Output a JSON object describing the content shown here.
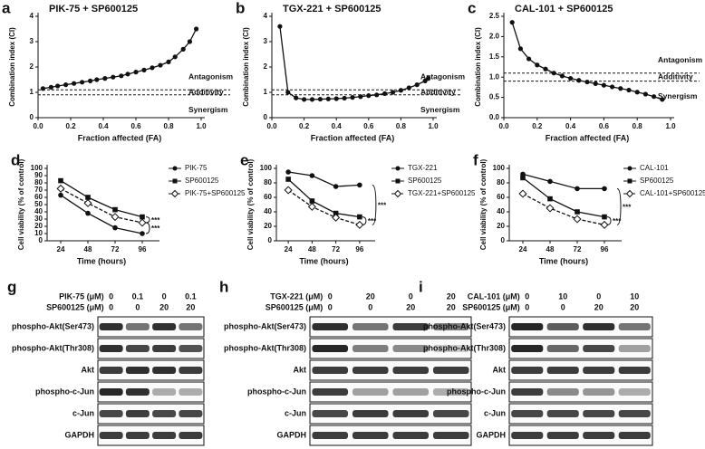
{
  "chart_data": [
    {
      "type": "line",
      "label": "a",
      "title": "PIK-75 + SP600125",
      "x_label": "Fraction affected (FA)",
      "y_label": "Combination index (CI)",
      "x": [
        0.03,
        0.08,
        0.12,
        0.17,
        0.22,
        0.27,
        0.32,
        0.36,
        0.41,
        0.46,
        0.51,
        0.55,
        0.6,
        0.65,
        0.7,
        0.75,
        0.8,
        0.84,
        0.89,
        0.93,
        0.97
      ],
      "values": [
        1.15,
        1.2,
        1.25,
        1.3,
        1.35,
        1.4,
        1.45,
        1.5,
        1.55,
        1.6,
        1.65,
        1.72,
        1.8,
        1.88,
        1.97,
        2.07,
        2.2,
        2.4,
        2.7,
        3.0,
        3.5
      ],
      "color": "#111111",
      "hlines": [
        0.9,
        1.1
      ],
      "annotations": [
        "Antagonism",
        "Additivity",
        "Synergism"
      ],
      "xlim": [
        0,
        1
      ],
      "xticks": [
        {
          "value": 0,
          "label": "0.0"
        },
        0.2,
        0.4,
        0.6,
        0.8,
        {
          "value": 1,
          "label": "1.0"
        }
      ],
      "ylim": [
        0,
        4
      ],
      "yticks": [
        0,
        1,
        2,
        3,
        4
      ]
    },
    {
      "type": "line",
      "label": "b",
      "title": "TGX-221 + SP600125",
      "x_label": "Fraction affected (FA)",
      "y_label": "Combination index (CI)",
      "x": [
        0.05,
        0.1,
        0.15,
        0.2,
        0.25,
        0.3,
        0.35,
        0.4,
        0.45,
        0.5,
        0.55,
        0.6,
        0.65,
        0.7,
        0.75,
        0.8,
        0.85,
        0.9,
        0.95,
        0.97
      ],
      "values": [
        3.6,
        1.0,
        0.78,
        0.72,
        0.72,
        0.73,
        0.74,
        0.75,
        0.77,
        0.8,
        0.83,
        0.87,
        0.9,
        0.95,
        1.0,
        1.08,
        1.18,
        1.3,
        1.45,
        1.55
      ],
      "color": "#111111",
      "hlines": [
        0.9,
        1.1
      ],
      "annotations": [
        "Antagonism",
        "Additivity",
        "Synergism"
      ],
      "xlim": [
        0,
        1
      ],
      "xticks": [
        {
          "value": 0,
          "label": "0.0"
        },
        0.2,
        0.4,
        0.6,
        0.8,
        {
          "value": 1,
          "label": "1.0"
        }
      ],
      "ylim": [
        0,
        4
      ],
      "yticks": [
        0,
        1,
        2,
        3,
        4
      ]
    },
    {
      "type": "line",
      "label": "c",
      "title": "CAL-101 + SP600125",
      "x_label": "Fraction affected (FA)",
      "y_label": "Combination index (CI)",
      "x": [
        0.05,
        0.1,
        0.15,
        0.2,
        0.25,
        0.3,
        0.35,
        0.4,
        0.45,
        0.5,
        0.55,
        0.6,
        0.65,
        0.7,
        0.75,
        0.8,
        0.85,
        0.9,
        0.95
      ],
      "values": [
        2.35,
        1.7,
        1.45,
        1.3,
        1.2,
        1.1,
        1.03,
        0.97,
        0.92,
        0.88,
        0.84,
        0.8,
        0.76,
        0.72,
        0.68,
        0.63,
        0.58,
        0.52,
        0.45
      ],
      "color": "#111111",
      "hlines": [
        0.9,
        1.1
      ],
      "annotations": [
        "Antagonism",
        "Additivity",
        "Synergism"
      ],
      "xlim": [
        0,
        1
      ],
      "xticks": [
        {
          "value": 0,
          "label": "0.0"
        },
        0.2,
        0.4,
        0.6,
        0.8,
        {
          "value": 1,
          "label": "1.0"
        }
      ],
      "ylim": [
        0,
        2.5
      ],
      "yticks": [
        {
          "value": 0,
          "label": "0.0"
        },
        0.5,
        {
          "value": 1,
          "label": "1.0"
        },
        1.5,
        {
          "value": 2,
          "label": "2.0"
        },
        2.5
      ]
    },
    {
      "type": "line",
      "label": "d",
      "x_label": "Time (hours)",
      "y_label": "Cell viability (% of control)",
      "x": [
        24,
        48,
        72,
        96
      ],
      "series": [
        {
          "name": "PIK-75",
          "color": "#111111",
          "marker": "circle",
          "line_style": "solid",
          "values": [
            63,
            38,
            18,
            10
          ]
        },
        {
          "name": "SP600125",
          "color": "#111111",
          "marker": "square",
          "line_style": "solid",
          "values": [
            83,
            60,
            43,
            33
          ]
        },
        {
          "name": "PIK-75+SP600125",
          "color": "#111111",
          "marker": "diamond",
          "line_style": "dashed",
          "values": [
            72,
            52,
            33,
            25
          ]
        }
      ],
      "annotations": [
        "***",
        "***"
      ],
      "xlim": [
        12,
        108
      ],
      "xticks": [
        24,
        48,
        72,
        96
      ],
      "ylim": [
        0,
        100
      ],
      "yticks": [
        0,
        10,
        20,
        30,
        40,
        50,
        60,
        70,
        80,
        90,
        100
      ]
    },
    {
      "type": "line",
      "label": "e",
      "x_label": "Time (hours)",
      "y_label": "Cell viability (% of control)",
      "x": [
        24,
        48,
        72,
        96
      ],
      "series": [
        {
          "name": "TGX-221",
          "color": "#111111",
          "marker": "circle",
          "line_style": "solid",
          "values": [
            95,
            90,
            75,
            77
          ]
        },
        {
          "name": "SP600125",
          "color": "#111111",
          "marker": "square",
          "line_style": "solid",
          "values": [
            85,
            55,
            38,
            33
          ]
        },
        {
          "name": "TGX-221+SP600125",
          "color": "#111111",
          "marker": "diamond",
          "line_style": "dashed",
          "values": [
            70,
            47,
            32,
            22
          ]
        }
      ],
      "annotations": [
        "***",
        "***"
      ],
      "xlim": [
        12,
        108
      ],
      "xticks": [
        24,
        48,
        72,
        96
      ],
      "ylim": [
        0,
        100
      ],
      "yticks": [
        0,
        20,
        40,
        60,
        80,
        100
      ]
    },
    {
      "type": "line",
      "label": "f",
      "x_label": "Time (hours)",
      "y_label": "Cell viability (% of control)",
      "x": [
        24,
        48,
        72,
        96
      ],
      "series": [
        {
          "name": "CAL-101",
          "color": "#111111",
          "marker": "circle",
          "line_style": "solid",
          "values": [
            92,
            82,
            72,
            72
          ]
        },
        {
          "name": "SP600125",
          "color": "#111111",
          "marker": "square",
          "line_style": "solid",
          "values": [
            87,
            58,
            40,
            33
          ]
        },
        {
          "name": "CAL-101+SP600125",
          "color": "#111111",
          "marker": "diamond",
          "line_style": "dashed",
          "values": [
            65,
            45,
            30,
            22
          ]
        }
      ],
      "annotations": [
        "***",
        "***"
      ],
      "xlim": [
        12,
        108
      ],
      "xticks": [
        24,
        48,
        72,
        96
      ],
      "ylim": [
        0,
        100
      ],
      "yticks": [
        0,
        20,
        40,
        60,
        80,
        100
      ]
    }
  ],
  "blots": [
    {
      "label": "g",
      "treatments": [
        {
          "name": "PIK-75 (μM)",
          "doses": [
            "0",
            "0.1",
            "0",
            "0.1"
          ]
        },
        {
          "name": "SP600125 (μM)",
          "doses": [
            "0",
            "0",
            "20",
            "20"
          ]
        }
      ],
      "rows": [
        "phospho-Akt(Ser473)",
        "phospho-Akt(Thr308)",
        "Akt",
        "phospho-c-Jun",
        "c-Jun",
        "GAPDH"
      ]
    },
    {
      "label": "h",
      "treatments": [
        {
          "name": "TGX-221 (μM)",
          "doses": [
            "0",
            "20",
            "0",
            "20"
          ]
        },
        {
          "name": "SP600125 (μM)",
          "doses": [
            "0",
            "0",
            "20",
            "20"
          ]
        }
      ],
      "rows": [
        "phospho-Akt(Ser473)",
        "phospho-Akt(Thr308)",
        "Akt",
        "phospho-c-Jun",
        "c-Jun",
        "GAPDH"
      ]
    },
    {
      "label": "i",
      "treatments": [
        {
          "name": "CAL-101 (μM)",
          "doses": [
            "0",
            "10",
            "0",
            "10"
          ]
        },
        {
          "name": "SP600125 (μM)",
          "doses": [
            "0",
            "0",
            "20",
            "20"
          ]
        }
      ],
      "rows": [
        "phospho-Akt(Ser473)",
        "phospho-Akt(Thr308)",
        "Akt",
        "phospho-c-Jun",
        "c-Jun",
        "GAPDH"
      ]
    }
  ]
}
